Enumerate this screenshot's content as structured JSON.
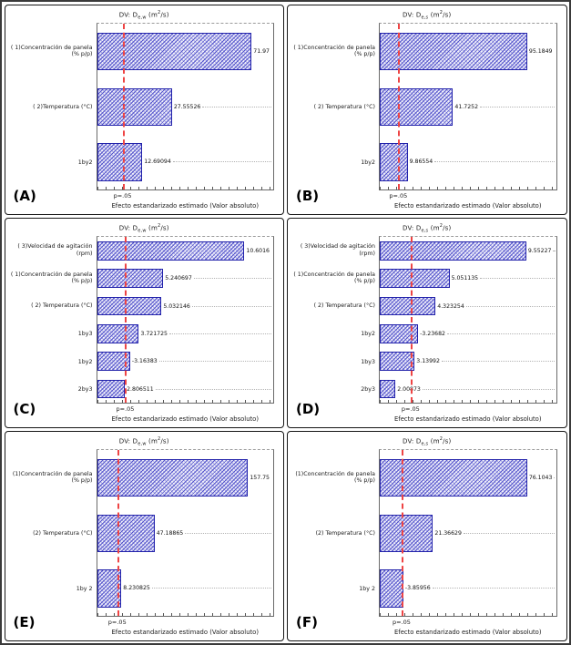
{
  "common": {
    "title_prefix": "DV: D",
    "unit_pre": " (m",
    "unit_sup": "2",
    "unit_post": "/s)",
    "colors": {
      "bar_fill": "#eeeefa",
      "bar_hatch": "#5555cc",
      "bar_border": "#2222aa",
      "ref_line": "#ee4444",
      "leader_line": "#b3b3b3",
      "panel_border": "#161616"
    }
  },
  "chart_data": [
    {
      "letter": "(A)",
      "type": "bar",
      "orientation": "horizontal",
      "title_text": "DV: De,w (m2/s)",
      "title_sub": "e,w",
      "categories": [
        "( 1)Concentración de panela (% p/p)",
        "( 2)Temperatura (°C)",
        "1by2"
      ],
      "values": [
        71.97,
        27.55526,
        12.69094
      ],
      "value_labels": [
        "71.97",
        "27.55526",
        "12.69094"
      ],
      "bar_fracs": [
        0.93,
        0.43,
        0.26
      ],
      "ref_line_frac": 0.145,
      "ref_label": "p=.05",
      "xlabel": "Efecto estandarizado estimado (Valor absoluto)",
      "grid": "off",
      "legend": "none"
    },
    {
      "letter": "(B)",
      "type": "bar",
      "orientation": "horizontal",
      "title_text": "DV: De,s (m2/s)",
      "title_sub": "e,s",
      "categories": [
        "( 1)Concentración de panela (% p/p)",
        "( 2) Temperatura (°C)",
        "1by2"
      ],
      "values": [
        95.1849,
        41.7252,
        9.86554
      ],
      "value_labels": [
        "95.1849",
        "41.7252",
        "9.86554"
      ],
      "bar_fracs": [
        0.86,
        0.42,
        0.16
      ],
      "ref_line_frac": 0.105,
      "ref_label": "p=.05",
      "xlabel": "Efecto estandarizado estimado (Valor absoluto)",
      "grid": "off",
      "legend": "none"
    },
    {
      "letter": "(C)",
      "type": "bar",
      "orientation": "horizontal",
      "title_text": "DV: De,w (m2/s)",
      "title_sub": "e,w",
      "categories": [
        "( 3)Velocidad de agitación (rpm)",
        "( 1)Concentración de panela (% p/p)",
        "( 2) Temperatura (°C)",
        "1by3",
        "1by2",
        "2by3"
      ],
      "values": [
        10.6016,
        5.240697,
        5.032146,
        3.721725,
        -3.16383,
        2.806511
      ],
      "value_labels": [
        "10.6016",
        "5.240697",
        "5.032146",
        "3.721725",
        "-3.16383",
        "2.806511"
      ],
      "bar_fracs": [
        0.86,
        0.38,
        0.37,
        0.24,
        0.19,
        0.16
      ],
      "ref_line_frac": 0.16,
      "ref_label": "p=.05",
      "xlabel": "Efecto estandarizado estimado (Valor absoluto)",
      "grid": "off",
      "legend": "none"
    },
    {
      "letter": "(D)",
      "type": "bar",
      "orientation": "horizontal",
      "title_text": "DV: De,s (m2/s)",
      "title_sub": "e,s",
      "categories": [
        "( 3)Velocidad de agitación (rpm)",
        "( 1)Concentración de panela (% p/p)",
        "( 2) Temperatura (°C)",
        "1by2",
        "1by3",
        "2by3"
      ],
      "values": [
        9.55227,
        5.051135,
        4.323254,
        -3.23682,
        3.13992,
        2.00873
      ],
      "value_labels": [
        "9.55227",
        "5.051135",
        "4.323254",
        "-3.23682",
        "3.13992",
        "2.00873"
      ],
      "bar_fracs": [
        0.84,
        0.4,
        0.32,
        0.22,
        0.2,
        0.09
      ],
      "ref_line_frac": 0.175,
      "ref_label": "p=.05",
      "xlabel": "Efecto estandarizado estimado (Valor absoluto)",
      "grid": "off",
      "legend": "none"
    },
    {
      "letter": "(E)",
      "type": "bar",
      "orientation": "horizontal",
      "title_text": "DV: De,w (m2/s)",
      "title_sub": "e,w",
      "categories": [
        "(1)Concentración de panela (% p/p)",
        "(2) Temperatura (°C)",
        "1by 2"
      ],
      "values": [
        157.75,
        47.18865,
        8.230825
      ],
      "value_labels": [
        "157.75",
        "47.18865",
        "8.230825"
      ],
      "bar_fracs": [
        0.885,
        0.33,
        0.14
      ],
      "ref_line_frac": 0.115,
      "ref_label": "p=.05",
      "xlabel": "Efecto estandarizado estimado (Valor absoluto)",
      "grid": "off",
      "legend": "none"
    },
    {
      "letter": "(F)",
      "type": "bar",
      "orientation": "horizontal",
      "title_text": "DV: De,s (m2/s)",
      "title_sub": "e,s",
      "categories": [
        "(1)Concentración de panela (% p/p)",
        "(2) Temperatura (°C)",
        "1by 2"
      ],
      "values": [
        76.1043,
        21.36629,
        -3.85956
      ],
      "value_labels": [
        "76.1043",
        "21.36629",
        "-3.85956"
      ],
      "bar_fracs": [
        0.845,
        0.305,
        0.135
      ],
      "ref_line_frac": 0.124,
      "ref_label": "p=.05",
      "xlabel": "Efecto estandarizado estimado (Valor absoluto)",
      "grid": "off",
      "legend": "none"
    }
  ]
}
